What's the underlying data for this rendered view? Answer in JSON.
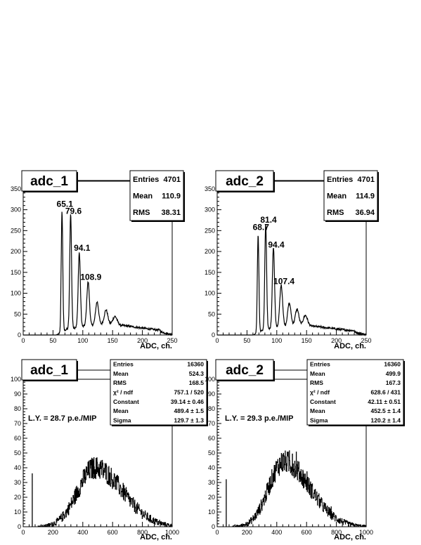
{
  "chart_data": [
    {
      "type": "histogram",
      "title": "adc_1",
      "xlabel": "ADC, ch.",
      "xlim": [
        0,
        250
      ],
      "ylim": [
        0,
        370
      ],
      "xticks": [
        0,
        50,
        100,
        150,
        200,
        250
      ],
      "yticks": [
        0,
        50,
        100,
        150,
        200,
        250,
        300,
        350
      ],
      "stats": [
        {
          "label": "Entries",
          "value": "4701"
        },
        {
          "label": "Mean",
          "value": "110.9"
        },
        {
          "label": "RMS",
          "value": "38.31"
        }
      ],
      "peak_labels": [
        {
          "text": "65.1",
          "x": 65.1,
          "y": 300
        },
        {
          "text": "79.6",
          "x": 79.6,
          "y": 283
        },
        {
          "text": "94.1",
          "x": 94.1,
          "y": 195
        },
        {
          "text": "108.9",
          "x": 108.9,
          "y": 125
        }
      ],
      "peaks": [
        {
          "x": 65.1,
          "h": 290,
          "w": 1.3
        },
        {
          "x": 79.6,
          "h": 275,
          "w": 1.5
        },
        {
          "x": 94.1,
          "h": 178,
          "w": 1.8
        },
        {
          "x": 108.9,
          "h": 105,
          "w": 2.2
        },
        {
          "x": 124,
          "h": 55,
          "w": 2.6
        },
        {
          "x": 139,
          "h": 35,
          "w": 3.0
        },
        {
          "x": 154,
          "h": 20,
          "w": 3.6
        }
      ],
      "background": {
        "start": 55,
        "end": 250,
        "peak_x": 140,
        "height": 25
      }
    },
    {
      "type": "histogram",
      "title": "adc_2",
      "xlabel": "ADC, ch.",
      "xlim": [
        0,
        250
      ],
      "ylim": [
        0,
        370
      ],
      "xticks": [
        0,
        50,
        100,
        150,
        200,
        250
      ],
      "yticks": [
        0,
        50,
        100,
        150,
        200,
        250,
        300,
        350
      ],
      "stats": [
        {
          "label": "Entries",
          "value": "4701"
        },
        {
          "label": "Mean",
          "value": "114.9"
        },
        {
          "label": "RMS",
          "value": "36.94"
        }
      ],
      "peak_labels": [
        {
          "text": "68.7",
          "x": 68.7,
          "y": 245
        },
        {
          "text": "81.4",
          "x": 81.4,
          "y": 262
        },
        {
          "text": "94.4",
          "x": 94.4,
          "y": 203
        },
        {
          "text": "107.4",
          "x": 107.4,
          "y": 115
        }
      ],
      "peaks": [
        {
          "x": 68.7,
          "h": 235,
          "w": 1.3
        },
        {
          "x": 81.4,
          "h": 252,
          "w": 1.5
        },
        {
          "x": 94.4,
          "h": 193,
          "w": 1.8
        },
        {
          "x": 107.4,
          "h": 100,
          "w": 2.4
        },
        {
          "x": 121,
          "h": 55,
          "w": 2.8
        },
        {
          "x": 134,
          "h": 40,
          "w": 3.0
        },
        {
          "x": 148,
          "h": 25,
          "w": 3.6
        }
      ],
      "background": {
        "start": 60,
        "end": 250,
        "peak_x": 140,
        "height": 22
      }
    },
    {
      "type": "histogram",
      "title": "adc_1",
      "xlabel": "ADC, ch.",
      "xlim": [
        0,
        1000
      ],
      "ylim": [
        0,
        100
      ],
      "xticks": [
        0,
        200,
        400,
        600,
        800,
        1000
      ],
      "yticks": [
        0,
        10,
        20,
        30,
        40,
        50,
        60,
        70,
        80,
        90,
        100
      ],
      "annotation": "L.Y. = 28.7 p.e./MIP",
      "stats": [
        {
          "label": "Entries",
          "value": "16360"
        },
        {
          "label": "Mean",
          "value": "524.3"
        },
        {
          "label": "RMS",
          "value": "168.5"
        },
        {
          "label": "χ² / ndf",
          "value": "757.1 / 520"
        },
        {
          "label": "Constant",
          "value": "39.14 ± 0.46"
        },
        {
          "label": "Mean",
          "value": "489.4 ± 1.5"
        },
        {
          "label": "Sigma",
          "value": "129.7 ± 1.3"
        }
      ],
      "pedestal": {
        "x": 60,
        "h": 36
      },
      "distribution": {
        "start": 100,
        "end": 1000,
        "peak_x": 480,
        "peak_y": 40,
        "sigma_left": 115,
        "sigma_right": 185,
        "noise": 6
      }
    },
    {
      "type": "histogram",
      "title": "adc_2",
      "xlabel": "ADC, ch.",
      "xlim": [
        0,
        1000
      ],
      "ylim": [
        0,
        100
      ],
      "xticks": [
        0,
        200,
        400,
        600,
        800,
        1000
      ],
      "yticks": [
        0,
        10,
        20,
        30,
        40,
        50,
        60,
        70,
        80,
        90,
        100
      ],
      "annotation": "L.Y. = 29.3 p.e./MIP",
      "stats": [
        {
          "label": "Entries",
          "value": "16360"
        },
        {
          "label": "Mean",
          "value": "499.9"
        },
        {
          "label": "RMS",
          "value": "167.3"
        },
        {
          "label": "χ² / ndf",
          "value": "628.6 / 431"
        },
        {
          "label": "Constant",
          "value": "42.11 ± 0.51"
        },
        {
          "label": "Mean",
          "value": "452.5 ± 1.4"
        },
        {
          "label": "Sigma",
          "value": "120.2 ± 1.4"
        }
      ],
      "pedestal": {
        "x": 60,
        "h": 32
      },
      "distribution": {
        "start": 100,
        "end": 1000,
        "peak_x": 445,
        "peak_y": 44,
        "sigma_left": 100,
        "sigma_right": 175,
        "noise": 6
      }
    }
  ]
}
